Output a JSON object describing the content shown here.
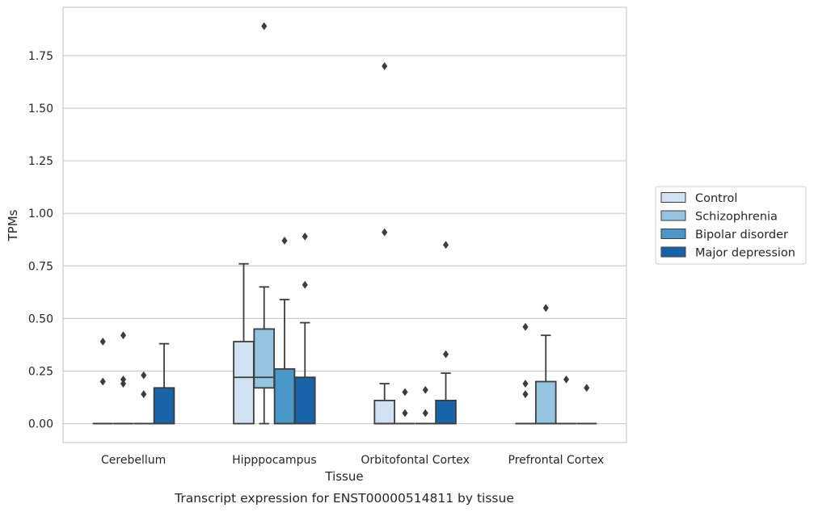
{
  "chart_data": {
    "type": "boxplot",
    "caption": "Transcript expression for ENST00000514811 by tissue",
    "xlabel": "Tissue",
    "ylabel": "TPMs",
    "ylim": [
      -0.09,
      1.98
    ],
    "yticks": [
      0.0,
      0.25,
      0.5,
      0.75,
      1.0,
      1.25,
      1.5,
      1.75
    ],
    "ytick_labels": [
      "0.00",
      "0.25",
      "0.50",
      "0.75",
      "1.00",
      "1.25",
      "1.50",
      "1.75"
    ],
    "grid": true,
    "legend_position": "right",
    "categories": [
      "Cerebellum",
      "Hipppocampus",
      "Orbitofontal Cortex",
      "Prefrontal Cortex"
    ],
    "series": [
      {
        "name": "Control",
        "color": "#d0e1f2",
        "boxes": [
          {
            "q1": 0,
            "median": 0,
            "q3": 0,
            "whislo": 0,
            "whishi": 0,
            "fliers": [
              0.39,
              0.2
            ]
          },
          {
            "q1": 0,
            "median": 0.22,
            "q3": 0.39,
            "whislo": 0,
            "whishi": 0.76,
            "fliers": []
          },
          {
            "q1": 0,
            "median": 0,
            "q3": 0.11,
            "whislo": 0,
            "whishi": 0.19,
            "fliers": [
              1.7,
              0.91
            ]
          },
          {
            "q1": 0,
            "median": 0,
            "q3": 0,
            "whislo": 0,
            "whishi": 0,
            "fliers": [
              0.46,
              0.19,
              0.14
            ]
          }
        ]
      },
      {
        "name": "Schizophrenia",
        "color": "#94c4df",
        "boxes": [
          {
            "q1": 0,
            "median": 0,
            "q3": 0,
            "whislo": 0,
            "whishi": 0,
            "fliers": [
              0.42,
              0.21,
              0.19
            ]
          },
          {
            "q1": 0.17,
            "median": 0.22,
            "q3": 0.45,
            "whislo": 0,
            "whishi": 0.65,
            "fliers": [
              1.89
            ]
          },
          {
            "q1": 0,
            "median": 0,
            "q3": 0,
            "whislo": 0,
            "whishi": 0,
            "fliers": [
              0.15,
              0.05
            ]
          },
          {
            "q1": 0,
            "median": 0,
            "q3": 0.2,
            "whislo": 0,
            "whishi": 0.42,
            "fliers": [
              0.55
            ]
          }
        ]
      },
      {
        "name": "Bipolar disorder",
        "color": "#4a98c9",
        "boxes": [
          {
            "q1": 0,
            "median": 0,
            "q3": 0,
            "whislo": 0,
            "whishi": 0,
            "fliers": [
              0.23,
              0.14
            ]
          },
          {
            "q1": 0,
            "median": 0.0,
            "q3": 0.26,
            "whislo": 0,
            "whishi": 0.59,
            "fliers": [
              0.87
            ]
          },
          {
            "q1": 0,
            "median": 0,
            "q3": 0,
            "whislo": 0,
            "whishi": 0,
            "fliers": [
              0.16,
              0.05
            ]
          },
          {
            "q1": 0,
            "median": 0,
            "q3": 0,
            "whislo": 0,
            "whishi": 0,
            "fliers": [
              0.21
            ]
          }
        ]
      },
      {
        "name": "Major depression",
        "color": "#1764ab",
        "boxes": [
          {
            "q1": 0,
            "median": 0,
            "q3": 0.17,
            "whislo": 0,
            "whishi": 0.38,
            "fliers": []
          },
          {
            "q1": 0,
            "median": 0.22,
            "q3": 0.22,
            "whislo": 0,
            "whishi": 0.48,
            "fliers": [
              0.89,
              0.66
            ]
          },
          {
            "q1": 0,
            "median": 0,
            "q3": 0.11,
            "whislo": 0,
            "whishi": 0.24,
            "fliers": [
              0.85,
              0.33
            ]
          },
          {
            "q1": 0,
            "median": 0,
            "q3": 0,
            "whislo": 0,
            "whishi": 0,
            "fliers": [
              0.17
            ]
          }
        ]
      }
    ]
  }
}
